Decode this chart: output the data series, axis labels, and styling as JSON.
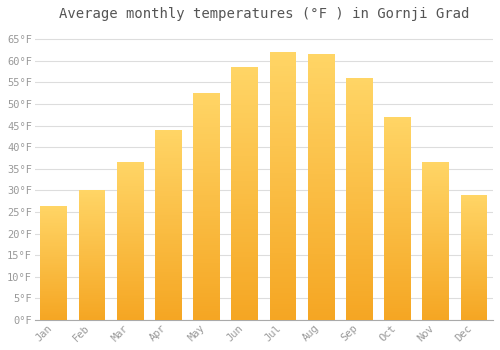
{
  "title": "Average monthly temperatures (°F ) in Gornji Grad",
  "months": [
    "Jan",
    "Feb",
    "Mar",
    "Apr",
    "May",
    "Jun",
    "Jul",
    "Aug",
    "Sep",
    "Oct",
    "Nov",
    "Dec"
  ],
  "values": [
    26.5,
    30.0,
    36.5,
    44.0,
    52.5,
    58.5,
    62.0,
    61.5,
    56.0,
    47.0,
    36.5,
    29.0
  ],
  "bar_color_bottom": "#F5A623",
  "bar_color_top": "#FFD966",
  "background_color": "#FFFFFF",
  "grid_color": "#DDDDDD",
  "text_color": "#999999",
  "title_color": "#555555",
  "ylim": [
    0,
    68
  ],
  "yticks": [
    0,
    5,
    10,
    15,
    20,
    25,
    30,
    35,
    40,
    45,
    50,
    55,
    60,
    65
  ],
  "title_fontsize": 10,
  "tick_fontsize": 7.5,
  "bar_width": 0.7
}
